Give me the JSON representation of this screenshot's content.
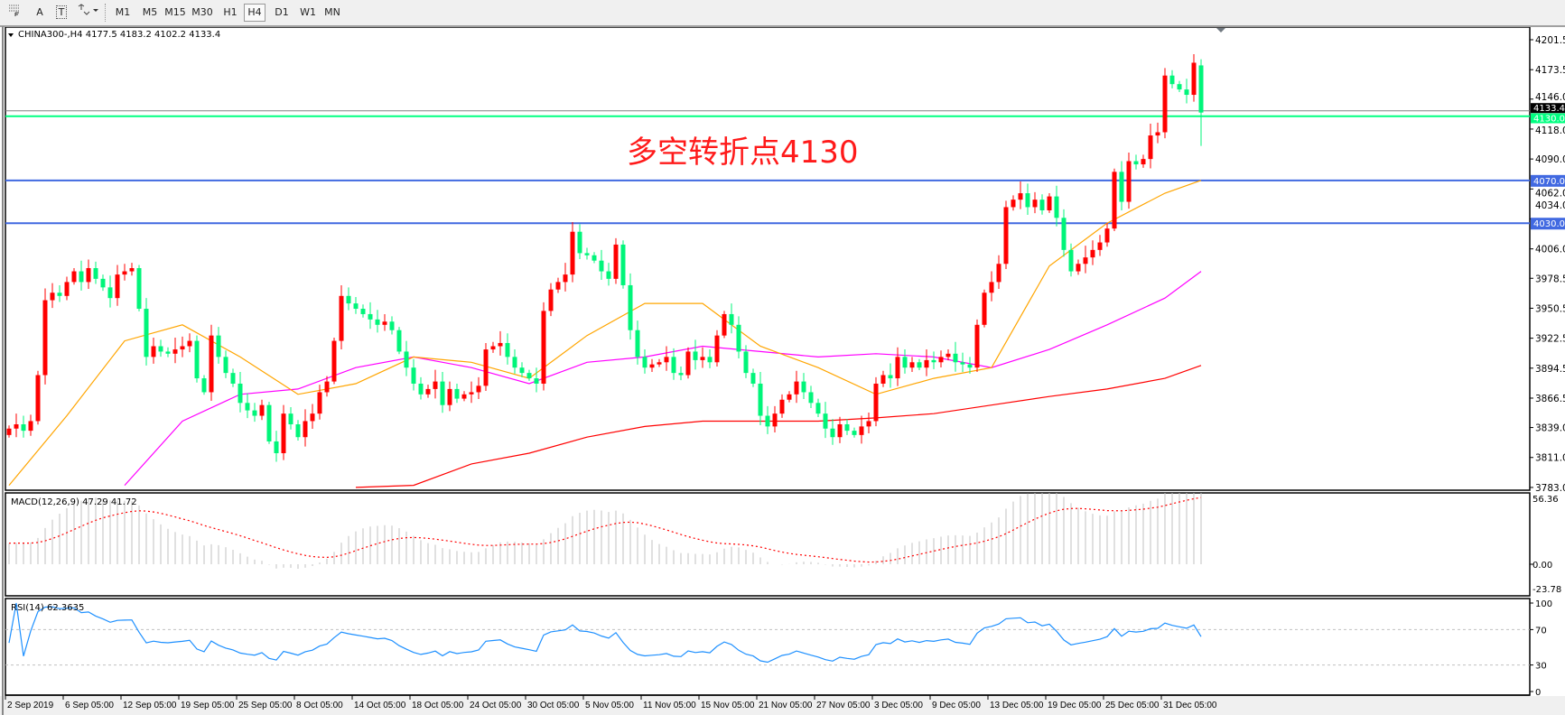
{
  "toolbar": {
    "tools": [
      {
        "icon": "grid-fibo-icon",
        "label": ""
      },
      {
        "icon": "text-icon",
        "label": "A"
      },
      {
        "icon": "text-label-icon",
        "label": "T"
      },
      {
        "icon": "arrows-dropdown-icon",
        "label": ""
      }
    ],
    "timeframes": [
      "M1",
      "M5",
      "M15",
      "M30",
      "H1",
      "H4",
      "D1",
      "W1",
      "MN"
    ],
    "active_timeframe": "H4"
  },
  "chart": {
    "header": "CHINA300-,H4  4177.5 4183.2 4102.2 4133.4",
    "annotation": "多空转折点4130",
    "colors": {
      "bull": "#ff0000",
      "bear": "#00f57a",
      "ma_fast": "#ffa500",
      "ma_mid": "#ff00ff",
      "ma_slow": "#ff0000",
      "support": "#4169e1",
      "pivot": "#00ff80",
      "rsi": "#1e90ff",
      "macd_hist": "#c0c0c0",
      "macd_signal": "#ff0000"
    }
  },
  "chart_data": {
    "type": "candlestick",
    "symbol": "CHINA300-",
    "timeframe": "H4",
    "last_bar": {
      "open": 4177.5,
      "high": 4183.2,
      "low": 4102.2,
      "close": 4133.4
    },
    "ylim": [
      3783.0,
      4201.5
    ],
    "y_ticks": [
      "4201.5",
      "4173.5",
      "4146.0",
      "4118.0",
      "4090.0",
      "4062.0",
      "4034.0",
      "4006.0",
      "3978.5",
      "3950.5",
      "3922.5",
      "3894.5",
      "3866.5",
      "3839.0",
      "3811.0",
      "3783.0"
    ],
    "x_ticks": [
      "2 Sep 2019",
      "6 Sep 05:00",
      "12 Sep 05:00",
      "19 Sep 05:00",
      "25 Sep 05:00",
      "8 Oct 05:00",
      "14 Oct 05:00",
      "18 Oct 05:00",
      "24 Oct 05:00",
      "30 Oct 05:00",
      "5 Nov 05:00",
      "11 Nov 05:00",
      "15 Nov 05:00",
      "21 Nov 05:00",
      "27 Nov 05:00",
      "3 Dec 05:00",
      "9 Dec 05:00",
      "13 Dec 05:00",
      "19 Dec 05:00",
      "25 Dec 05:00",
      "31 Dec 05:00"
    ],
    "bars_per_tick": 8,
    "close": [
      3838,
      3842,
      3836,
      3845,
      3888,
      3958,
      3965,
      3962,
      3975,
      3985,
      3975,
      3988,
      3978,
      3970,
      3960,
      3982,
      3985,
      3988,
      3950,
      3905,
      3915,
      3910,
      3908,
      3912,
      3915,
      3920,
      3885,
      3872,
      3925,
      3905,
      3890,
      3880,
      3862,
      3855,
      3850,
      3860,
      3826,
      3815,
      3852,
      3842,
      3830,
      3845,
      3852,
      3872,
      3882,
      3920,
      3962,
      3955,
      3950,
      3945,
      3940,
      3935,
      3938,
      3930,
      3910,
      3895,
      3880,
      3870,
      3875,
      3882,
      3860,
      3875,
      3866,
      3870,
      3872,
      3878,
      3912,
      3915,
      3918,
      3905,
      3895,
      3890,
      3885,
      3880,
      3948,
      3968,
      3975,
      3982,
      4022,
      4002,
      4000,
      3995,
      3985,
      3978,
      4010,
      3972,
      3930,
      3905,
      3895,
      3898,
      3900,
      3905,
      3890,
      3888,
      3910,
      3902,
      3905,
      3900,
      3925,
      3945,
      3935,
      3910,
      3890,
      3880,
      3850,
      3840,
      3852,
      3865,
      3870,
      3882,
      3872,
      3862,
      3852,
      3838,
      3830,
      3842,
      3836,
      3832,
      3840,
      3845,
      3880,
      3888,
      3885,
      3905,
      3895,
      3900,
      3895,
      3902,
      3900,
      3905,
      3908,
      3900,
      3898,
      3895,
      3935,
      3965,
      3975,
      3992,
      4045,
      4052,
      4058,
      4045,
      4052,
      4042,
      4055,
      4035,
      4005,
      3985,
      3992,
      3998,
      4005,
      4012,
      4025,
      4078,
      4050,
      4088,
      4085,
      4090,
      4112,
      4115,
      4168,
      4160,
      4155,
      4150,
      4180,
      4133.4
    ],
    "moving_averages_at_ticks": {
      "fast": [
        3785,
        3850,
        3920,
        3935,
        3905,
        3870,
        3880,
        3905,
        3900,
        3885,
        3925,
        3955,
        3955,
        3915,
        3895,
        3870,
        3885,
        3895,
        3990,
        4030,
        4058,
        4070
      ],
      "mid": [
        null,
        null,
        3785,
        3845,
        3870,
        3875,
        3895,
        3905,
        3895,
        3880,
        3900,
        3905,
        3915,
        3910,
        3905,
        3908,
        3905,
        3895,
        3912,
        3935,
        3960,
        3985
      ],
      "slow": [
        null,
        null,
        null,
        null,
        null,
        null,
        3783,
        3785,
        3805,
        3815,
        3830,
        3840,
        3845,
        3845,
        3845,
        3848,
        3852,
        3860,
        3868,
        3875,
        3885,
        3897
      ]
    },
    "horizontal_lines": [
      {
        "price": 4130.0,
        "label": "4130.0",
        "kind": "pivot"
      },
      {
        "price": 4070.0,
        "label": "4070.0",
        "kind": "support"
      },
      {
        "price": 4030.0,
        "label": "4030.0",
        "kind": "support"
      }
    ],
    "current_price_label": "4133.4",
    "macd": {
      "label": "MACD(12,26,9) 47.29 41.72",
      "params": [
        12,
        26,
        9
      ],
      "main": 47.29,
      "signal": 41.72,
      "y_ticks": [
        "56.36",
        "0.00",
        "-23.78"
      ],
      "ylim": [
        -23.78,
        56.36
      ]
    },
    "rsi": {
      "label": "RSI(14) 62.3635",
      "period": 14,
      "value": 62.3635,
      "y_ticks": [
        "100",
        "70",
        "30",
        "0"
      ],
      "levels": [
        70,
        30
      ]
    }
  }
}
